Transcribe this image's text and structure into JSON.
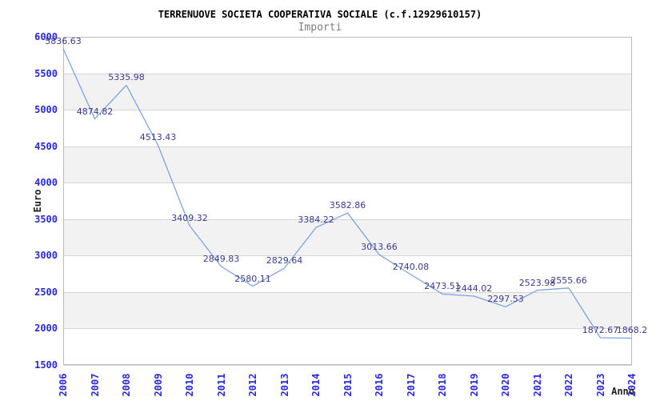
{
  "chart_data": {
    "type": "line",
    "title": "TERRENUOVE SOCIETA COOPERATIVA SOCIALE (c.f.12929610157)",
    "subtitle": "Importi",
    "xlabel": "Anno",
    "ylabel": "Euro",
    "x": [
      2006,
      2007,
      2008,
      2009,
      2010,
      2011,
      2012,
      2013,
      2014,
      2015,
      2016,
      2017,
      2018,
      2019,
      2020,
      2021,
      2022,
      2023,
      2024
    ],
    "series": [
      {
        "name": "Importi",
        "values": [
          5836.63,
          4874.82,
          5335.98,
          4513.43,
          3409.32,
          2849.83,
          2580.11,
          2829.64,
          3384.22,
          3582.86,
          3013.66,
          2740.08,
          2473.51,
          2444.02,
          2297.53,
          2523.98,
          2555.66,
          1872.67,
          1868.2
        ]
      }
    ],
    "point_labels": [
      "5836.63",
      "4874.82",
      "5335.98",
      "4513.43",
      "3409.32",
      "2849.83",
      "2580.11",
      "2829.64",
      "3384.22",
      "3582.86",
      "3013.66",
      "2740.08",
      "2473.51",
      "2444.02",
      "2297.53",
      "2523.98",
      "2555.66",
      "1872.67",
      "1868.2"
    ],
    "ylim": [
      1500,
      6000
    ],
    "ytick_step": 500,
    "ytick_labels": [
      "6000",
      "5500",
      "5000",
      "4500",
      "4000",
      "3500",
      "3000",
      "2500",
      "2000",
      "1500"
    ],
    "grid": true,
    "banded_background": true,
    "legend_position": "none"
  },
  "colors": {
    "line": "#7ba4e0",
    "tick_label": "#2929d6",
    "value_label": "#3b3b8a",
    "band_fill": "#f2f2f2",
    "gridline": "#d6d6d6",
    "plot_border": "#bbbbbb",
    "title": "#000000",
    "subtitle": "#7d7d7d",
    "axis_title": "#222222",
    "background": "#ffffff"
  }
}
